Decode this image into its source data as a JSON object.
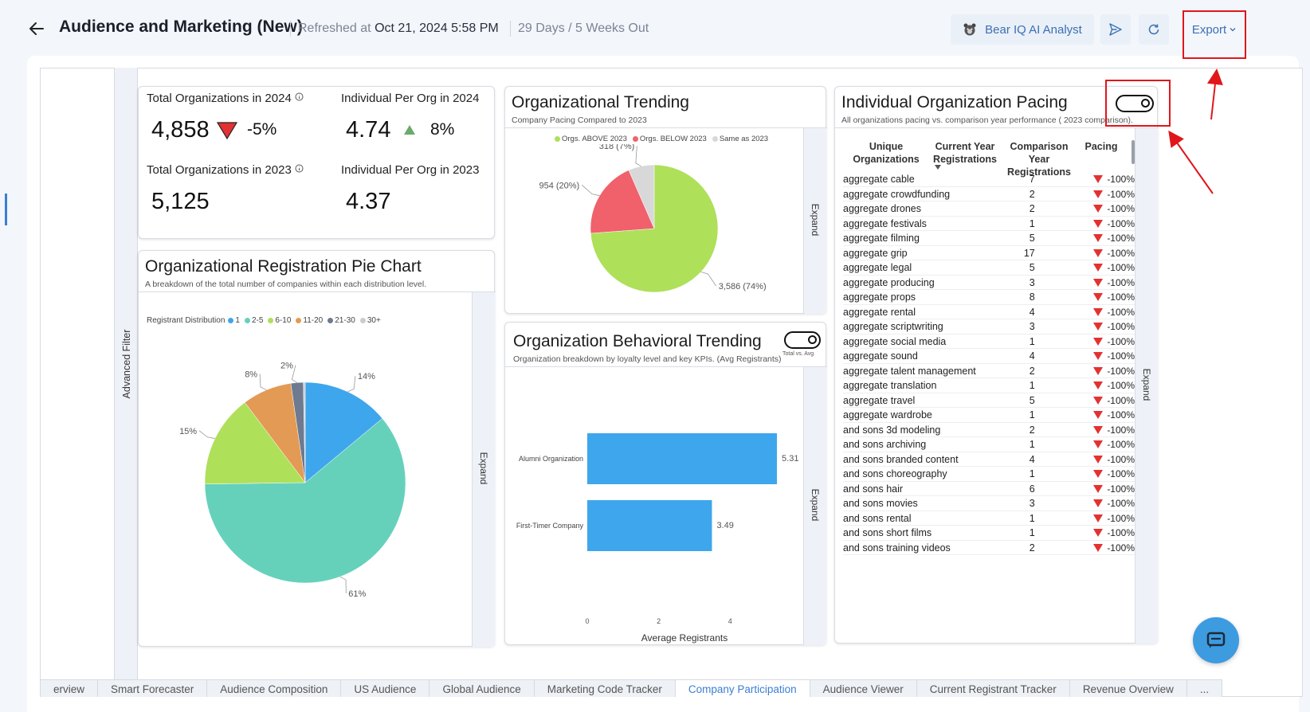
{
  "header": {
    "title": "Audience and Marketing (New)",
    "refreshed_label": "Refreshed at",
    "refreshed_value": "Oct 21, 2024 5:58 PM",
    "days_out": "29 Days / 5 Weeks Out",
    "ai_button": "Bear IQ AI Analyst",
    "export_button": "Export"
  },
  "side_filter": {
    "label": "Advanced Filter"
  },
  "kpis": {
    "total_orgs_2024": {
      "label": "Total Organizations in 2024",
      "value": "4,858",
      "change": "-5%",
      "direction": "down"
    },
    "ind_per_org_2024": {
      "label": "Individual Per Org in 2024",
      "value": "4.74",
      "change": "8%",
      "direction": "up"
    },
    "total_orgs_2023": {
      "label": "Total Organizations in 2023",
      "value": "5,125"
    },
    "ind_per_org_2023": {
      "label": "Individual Per Org in 2023",
      "value": "4.37"
    }
  },
  "expand_label": "Expand",
  "trending": {
    "title": "Organizational Trending",
    "subtitle": "Company Pacing Compared to 2023",
    "chart_data": {
      "type": "pie",
      "legend": [
        "Orgs. ABOVE 2023",
        "Orgs. BELOW 2023",
        "Same as 2023"
      ],
      "values": [
        3586,
        954,
        318
      ],
      "labels": [
        "3,586 (74%)",
        "954 (20%)",
        "318 (7%)"
      ],
      "colors": [
        "#aee05a",
        "#f0616b",
        "#d8d8d8"
      ],
      "legend_position": "top"
    }
  },
  "registration_pie": {
    "title": "Organizational Registration Pie Chart",
    "subtitle": "A breakdown of the total number of companies within each distribution level.",
    "legend_title": "Registrant Distribution",
    "chart_data": {
      "type": "pie",
      "categories": [
        "1",
        "2-5",
        "6-10",
        "11-20",
        "21-30",
        "30+"
      ],
      "values": [
        14,
        61,
        15,
        8,
        2,
        0.3
      ],
      "labels": [
        "14%",
        "61%",
        "15%",
        "8%",
        "2%",
        ""
      ],
      "colors": [
        "#3ea6ec",
        "#66d1bb",
        "#aee05a",
        "#e39a54",
        "#6d7a8f",
        "#cccccc"
      ],
      "legend_position": "top-left"
    }
  },
  "behavioral": {
    "title": "Organization Behavioral Trending",
    "subtitle": "Organization breakdown by loyalty level and key KPIs. (Avg Registrants)",
    "toggle_label": "Total vs. Avg",
    "chart_data": {
      "type": "bar",
      "orientation": "horizontal",
      "categories": [
        "Alumni Organization",
        "First-Timer Company"
      ],
      "values": [
        5.31,
        3.49
      ],
      "xlabel": "Average Registrants",
      "xticks": [
        "0",
        "2",
        "4"
      ],
      "xlim": [
        0,
        5.8
      ],
      "color": "#3ea6ec"
    }
  },
  "pacing": {
    "title": "Individual Organization Pacing",
    "subtitle": "All organizations pacing vs. comparison year performance ( 2023 comparison).",
    "columns": [
      "Unique Organizations",
      "Current Year Registrations",
      "Comparison Year Registrations",
      "Pacing"
    ],
    "rows": [
      {
        "org": "aggregate cable",
        "cy": "7",
        "pace": "-100%"
      },
      {
        "org": "aggregate crowdfunding",
        "cy": "2",
        "pace": "-100%"
      },
      {
        "org": "aggregate drones",
        "cy": "2",
        "pace": "-100%"
      },
      {
        "org": "aggregate festivals",
        "cy": "1",
        "pace": "-100%"
      },
      {
        "org": "aggregate filming",
        "cy": "5",
        "pace": "-100%"
      },
      {
        "org": "aggregate grip",
        "cy": "17",
        "pace": "-100%"
      },
      {
        "org": "aggregate legal",
        "cy": "5",
        "pace": "-100%"
      },
      {
        "org": "aggregate producing",
        "cy": "3",
        "pace": "-100%"
      },
      {
        "org": "aggregate props",
        "cy": "8",
        "pace": "-100%"
      },
      {
        "org": "aggregate rental",
        "cy": "4",
        "pace": "-100%"
      },
      {
        "org": "aggregate scriptwriting",
        "cy": "3",
        "pace": "-100%"
      },
      {
        "org": "aggregate social media",
        "cy": "1",
        "pace": "-100%"
      },
      {
        "org": "aggregate sound",
        "cy": "4",
        "pace": "-100%"
      },
      {
        "org": "aggregate talent management",
        "cy": "2",
        "pace": "-100%"
      },
      {
        "org": "aggregate translation",
        "cy": "1",
        "pace": "-100%"
      },
      {
        "org": "aggregate travel",
        "cy": "5",
        "pace": "-100%"
      },
      {
        "org": "aggregate wardrobe",
        "cy": "1",
        "pace": "-100%"
      },
      {
        "org": "and sons 3d modeling",
        "cy": "2",
        "pace": "-100%"
      },
      {
        "org": "and sons archiving",
        "cy": "1",
        "pace": "-100%"
      },
      {
        "org": "and sons branded content",
        "cy": "4",
        "pace": "-100%"
      },
      {
        "org": "and sons choreography",
        "cy": "1",
        "pace": "-100%"
      },
      {
        "org": "and sons hair",
        "cy": "6",
        "pace": "-100%"
      },
      {
        "org": "and sons movies",
        "cy": "3",
        "pace": "-100%"
      },
      {
        "org": "and sons rental",
        "cy": "1",
        "pace": "-100%"
      },
      {
        "org": "and sons short films",
        "cy": "1",
        "pace": "-100%"
      },
      {
        "org": "and sons training videos",
        "cy": "2",
        "pace": "-100%"
      }
    ]
  },
  "tabs": [
    {
      "label": "erview",
      "active": false
    },
    {
      "label": "Smart Forecaster",
      "active": false
    },
    {
      "label": "Audience Composition",
      "active": false
    },
    {
      "label": "US Audience",
      "active": false
    },
    {
      "label": "Global Audience",
      "active": false
    },
    {
      "label": "Marketing Code Tracker",
      "active": false
    },
    {
      "label": "Company Participation",
      "active": true
    },
    {
      "label": "Audience Viewer",
      "active": false
    },
    {
      "label": "Current Registrant Tracker",
      "active": false
    },
    {
      "label": "Revenue Overview",
      "active": false
    },
    {
      "label": "...",
      "active": false
    }
  ],
  "icons": {
    "back": "arrow-left-icon",
    "ai": "bear-icon",
    "send": "send-icon",
    "refresh": "refresh-icon",
    "export_caret": "chevron-down-icon",
    "chat": "chat-icon"
  },
  "colors": {
    "accent": "#3b7fd4",
    "annotation_red": "#e0161b",
    "down": "#e23232",
    "up": "#6aaa6a"
  }
}
